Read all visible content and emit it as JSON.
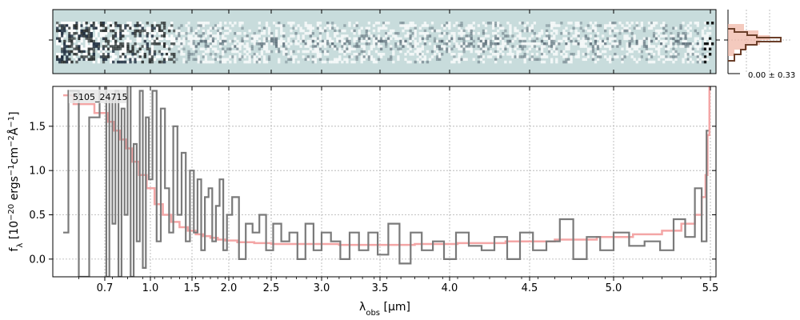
{
  "chart_data": [
    {
      "type": "heatmap",
      "panel": "2D spectrum",
      "background_color": "#c8dcdc",
      "ink_color": "#1c2a3c"
    },
    {
      "type": "line",
      "panel": "1D spectrum",
      "object_label": "5105_24715",
      "xlabel_main": "λ",
      "xlabel_sub": "obs",
      "xlabel_unit": " [μm]",
      "ylabel_parts": [
        "f",
        "λ",
        " [10",
        "−20",
        " ergs",
        "−1",
        "cm",
        "−2",
        "Å",
        "−1",
        "]"
      ],
      "x_ticks": [
        "0.7",
        "1.0",
        "1.5",
        "2.0",
        "2.5",
        "3.0",
        "3.5",
        "4.0",
        "4.5",
        "5.0",
        "5.5"
      ],
      "x_tick_values": [
        0.7,
        1.0,
        1.5,
        2.0,
        2.5,
        3.0,
        3.5,
        4.0,
        4.5,
        5.0,
        5.5
      ],
      "y_ticks": [
        "0.0",
        "0.5",
        "1.0",
        "1.5"
      ],
      "y_tick_values": [
        0.0,
        0.5,
        1.0,
        1.5
      ],
      "xlim": [
        0.6,
        5.52
      ],
      "ylim": [
        -0.2,
        1.95
      ],
      "grid": true,
      "series": [
        {
          "role": "data",
          "color": "#7a7a7a",
          "x": [
            0.62,
            0.64,
            0.66,
            0.68,
            0.7,
            0.72,
            0.74,
            0.76,
            0.78,
            0.8,
            0.82,
            0.84,
            0.86,
            0.88,
            0.9,
            0.92,
            0.94,
            0.96,
            0.98,
            1.0,
            1.05,
            1.1,
            1.15,
            1.2,
            1.25,
            1.3,
            1.35,
            1.4,
            1.45,
            1.5,
            1.55,
            1.6,
            1.65,
            1.7,
            1.75,
            1.8,
            1.85,
            1.9,
            1.95,
            2.0,
            2.08,
            2.16,
            2.24,
            2.32,
            2.4,
            2.48,
            2.56,
            2.64,
            2.72,
            2.8,
            2.88,
            2.96,
            3.04,
            3.12,
            3.2,
            3.28,
            3.36,
            3.44,
            3.52,
            3.6,
            3.68,
            3.76,
            3.84,
            3.92,
            4.0,
            4.08,
            4.16,
            4.24,
            4.32,
            4.4,
            4.48,
            4.56,
            4.64,
            4.72,
            4.8,
            4.88,
            4.96,
            5.04,
            5.12,
            5.2,
            5.28,
            5.34,
            5.4,
            5.44,
            5.47,
            5.49
          ],
          "y": [
            0.3,
            1.9,
            -0.2,
            1.6,
            2.0,
            -0.2,
            1.8,
            0.4,
            1.9,
            -0.2,
            1.7,
            0.5,
            2.0,
            -0.2,
            1.3,
            0.2,
            1.9,
            -0.1,
            1.6,
            0.9,
            1.9,
            0.2,
            1.7,
            0.8,
            0.3,
            1.5,
            0.5,
            1.2,
            0.2,
            1.0,
            0.3,
            0.9,
            0.1,
            0.7,
            0.8,
            0.2,
            0.6,
            0.9,
            0.1,
            0.5,
            0.7,
            0.0,
            0.4,
            0.3,
            0.5,
            0.1,
            0.4,
            0.2,
            0.3,
            0.0,
            0.4,
            0.1,
            0.3,
            0.2,
            0.0,
            0.3,
            0.1,
            0.3,
            0.05,
            0.4,
            -0.05,
            0.3,
            0.1,
            0.2,
            0.0,
            0.3,
            0.15,
            0.1,
            0.25,
            0.0,
            0.3,
            0.1,
            0.2,
            0.45,
            0.0,
            0.25,
            0.1,
            0.3,
            0.15,
            0.2,
            0.1,
            0.45,
            0.25,
            0.8,
            0.2,
            1.45
          ]
        },
        {
          "role": "model",
          "color": "#f4a6a6",
          "x": [
            0.62,
            0.66,
            0.7,
            0.74,
            0.78,
            0.82,
            0.86,
            0.9,
            0.95,
            1.0,
            1.1,
            1.2,
            1.3,
            1.4,
            1.5,
            1.6,
            1.7,
            1.8,
            1.9,
            2.0,
            2.2,
            2.4,
            2.6,
            2.8,
            3.0,
            3.3,
            3.6,
            3.9,
            4.2,
            4.5,
            4.8,
            5.0,
            5.2,
            5.3,
            5.4,
            5.44,
            5.47,
            5.48,
            5.49,
            5.5
          ],
          "y": [
            1.85,
            1.75,
            1.65,
            1.55,
            1.45,
            1.35,
            1.25,
            1.1,
            0.95,
            0.8,
            0.62,
            0.5,
            0.42,
            0.36,
            0.32,
            0.28,
            0.26,
            0.24,
            0.22,
            0.21,
            0.19,
            0.18,
            0.17,
            0.17,
            0.17,
            0.16,
            0.16,
            0.17,
            0.18,
            0.2,
            0.22,
            0.25,
            0.28,
            0.32,
            0.4,
            0.5,
            0.7,
            0.95,
            1.4,
            1.95
          ]
        }
      ]
    },
    {
      "type": "line",
      "panel": "profile",
      "annotation": "0.00 ± 0.33",
      "colors": {
        "data": "#6b3f2a",
        "model": "#f0b8a8"
      }
    }
  ]
}
